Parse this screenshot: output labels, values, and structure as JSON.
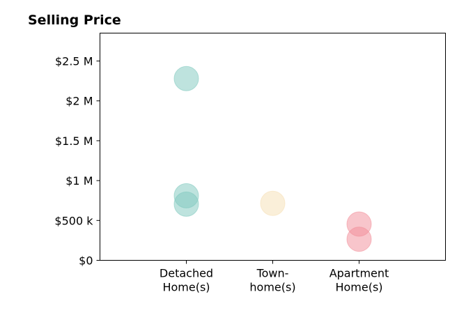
{
  "chart_data": {
    "type": "scatter",
    "title": "Selling Price",
    "xlabel": "",
    "ylabel": "",
    "categories": [
      [
        "Detached",
        "Home(s)"
      ],
      [
        "Town-",
        "home(s)"
      ],
      [
        "Apartment",
        "Home(s)"
      ]
    ],
    "ylim": [
      0,
      2850000
    ],
    "yticks": [
      {
        "value": 0,
        "label": "$0"
      },
      {
        "value": 500000,
        "label": "$500 k"
      },
      {
        "value": 1000000,
        "label": "$1 M"
      },
      {
        "value": 1500000,
        "label": "$1.5 M"
      },
      {
        "value": 2000000,
        "label": "$2 M"
      },
      {
        "value": 2500000,
        "label": "$2.5 M"
      }
    ],
    "grid": false,
    "legend": "none",
    "series": [
      {
        "category_index": 0,
        "color": "#7ec8bd",
        "values": [
          2280000,
          810000,
          705000
        ]
      },
      {
        "category_index": 1,
        "color": "#f5dfb3",
        "values": [
          715000
        ]
      },
      {
        "category_index": 2,
        "color": "#f28c98",
        "values": [
          455000,
          265000
        ]
      }
    ]
  }
}
